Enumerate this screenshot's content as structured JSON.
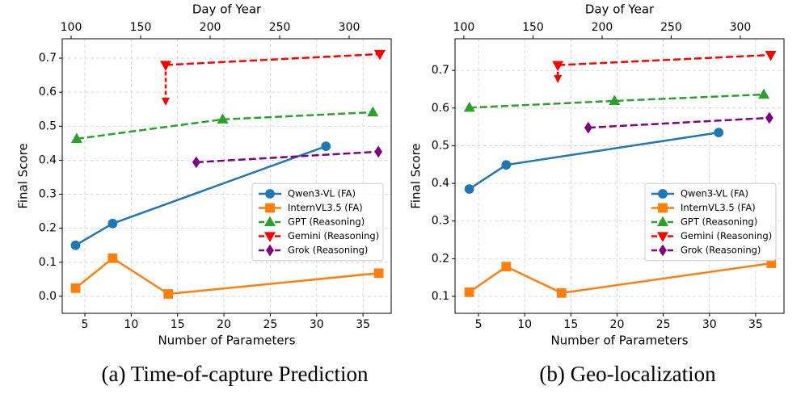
{
  "chart_data": [
    {
      "type": "line",
      "caption": "(a) Time-of-capture Prediction",
      "xlabel": "Number of Parameters",
      "x2label": "Day of Year",
      "ylabel": "Final Score",
      "xlim": [
        2.56,
        38.04
      ],
      "xticks": [
        5,
        10,
        15,
        20,
        25,
        30,
        35
      ],
      "x2lim": [
        93.6,
        330.2
      ],
      "x2ticks": [
        100,
        150,
        200,
        250,
        300
      ],
      "ylim": [
        -0.05,
        0.757
      ],
      "yticks": [
        {
          "value": 0,
          "label": "0.0"
        },
        0.1,
        0.2,
        0.3,
        0.4,
        0.5,
        0.6,
        0.7
      ],
      "grid": true,
      "legend": "center right",
      "series": [
        {
          "name": "Qwen3-VL (FA)",
          "color": "#1f77b4",
          "marker": "circle",
          "linestyle": "solid",
          "x": [
            4,
            8,
            31
          ],
          "values": [
            0.15,
            0.214,
            0.441
          ]
        },
        {
          "name": "InternVL3.5 (FA)",
          "color": "#ff7f0e",
          "marker": "square",
          "linestyle": "solid",
          "x": [
            4,
            8,
            14,
            36.7
          ],
          "values": [
            0.024,
            0.112,
            0.007,
            0.068
          ]
        },
        {
          "name": "GPT (Reasoning)",
          "color": "#2ca02c",
          "marker": "triangle-up",
          "linestyle": "dashed",
          "xaxis": "x2",
          "x": [
            104,
            209,
            317
          ],
          "values": [
            0.463,
            0.52,
            0.541
          ]
        },
        {
          "name": "Gemini (Reasoning)",
          "color": "#ff0000",
          "marker": "triangle-down",
          "linestyle": "dashed",
          "xaxis": "x2",
          "x": [
            168,
            322
          ],
          "values": [
            0.68,
            0.712
          ]
        },
        {
          "name": "Grok (Reasoning)",
          "color": "#800080",
          "marker": "diamond",
          "linestyle": "dashed",
          "xaxis": "x2",
          "x": [
            190,
            321
          ],
          "values": [
            0.394,
            0.425
          ]
        }
      ],
      "arrows": [
        {
          "x": 168,
          "y_from": 0.68,
          "y_to": 0.56,
          "xaxis": "x2",
          "color": "#ff0000"
        }
      ]
    },
    {
      "type": "line",
      "caption": "(b) Geo-localization",
      "xlabel": "Number of Parameters",
      "x2label": "Day of Year",
      "ylabel": "Final Score",
      "xlim": [
        2.46,
        38.07
      ],
      "xticks": [
        5,
        10,
        15,
        20,
        25,
        30,
        35
      ],
      "x2lim": [
        93.6,
        331.6
      ],
      "x2ticks": [
        100,
        150,
        200,
        250,
        300
      ],
      "ylim": [
        0.055,
        0.784
      ],
      "yticks": [
        0.1,
        0.2,
        0.3,
        0.4,
        0.5,
        0.6,
        0.7
      ],
      "grid": true,
      "legend": "center right",
      "series": [
        {
          "name": "Qwen3-VL (FA)",
          "color": "#1f77b4",
          "marker": "circle",
          "linestyle": "solid",
          "x": [
            4,
            8,
            31
          ],
          "values": [
            0.385,
            0.449,
            0.535
          ]
        },
        {
          "name": "InternVL3.5 (FA)",
          "color": "#ff7f0e",
          "marker": "square",
          "linestyle": "solid",
          "x": [
            4,
            8,
            14,
            36.7
          ],
          "values": [
            0.111,
            0.179,
            0.109,
            0.188
          ]
        },
        {
          "name": "GPT (Reasoning)",
          "color": "#2ca02c",
          "marker": "triangle-up",
          "linestyle": "dashed",
          "xaxis": "x2",
          "x": [
            104,
            209,
            317
          ],
          "values": [
            0.601,
            0.619,
            0.636
          ]
        },
        {
          "name": "Gemini (Reasoning)",
          "color": "#ff0000",
          "marker": "triangle-down",
          "linestyle": "dashed",
          "xaxis": "x2",
          "x": [
            168,
            322
          ],
          "values": [
            0.714,
            0.741
          ]
        },
        {
          "name": "Grok (Reasoning)",
          "color": "#800080",
          "marker": "diamond",
          "linestyle": "dashed",
          "xaxis": "x2",
          "x": [
            190,
            321
          ],
          "values": [
            0.548,
            0.574
          ]
        }
      ],
      "arrows": [
        {
          "x": 168,
          "y_from": 0.714,
          "y_to": 0.666,
          "xaxis": "x2",
          "color": "#ff0000"
        }
      ]
    }
  ]
}
